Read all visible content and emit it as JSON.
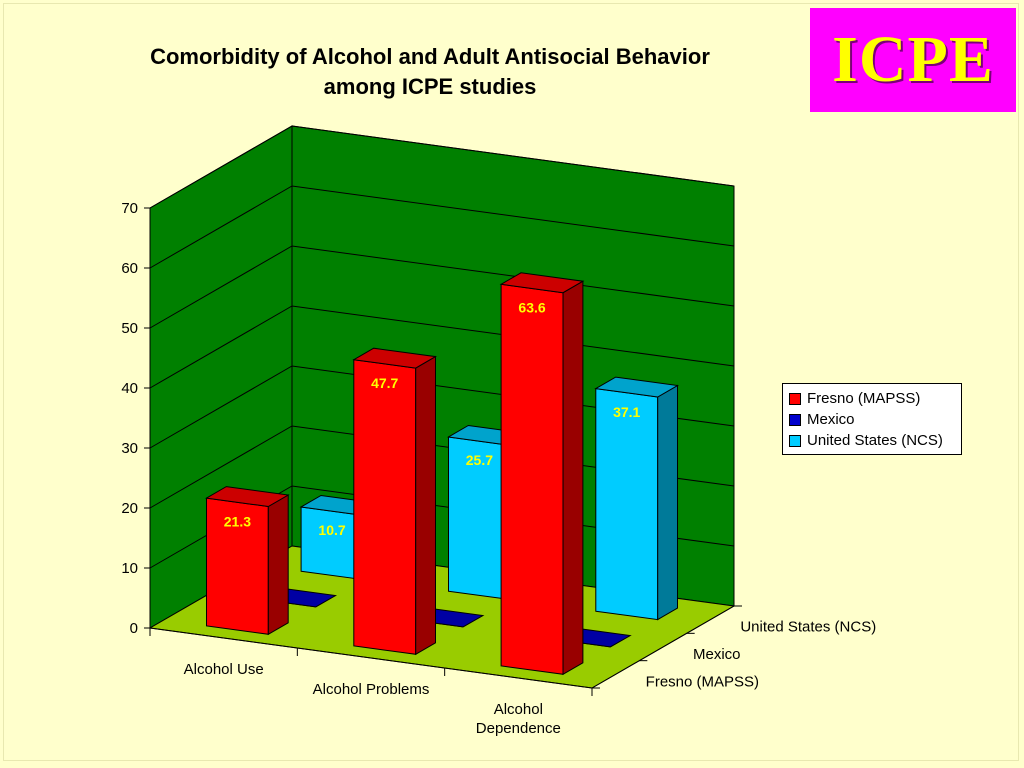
{
  "logo": {
    "text": "ICPE",
    "bg": "#ff00ff",
    "color": "#ffff00"
  },
  "chart_data": {
    "type": "bar",
    "style": "3d-column",
    "title_lines": [
      "Comorbidity of Alcohol and Adult Antisocial Behavior",
      "among ICPE studies"
    ],
    "categories": [
      "Alcohol Use",
      "Alcohol Problems",
      "Alcohol Dependence"
    ],
    "category_label_lines": [
      [
        "Alcohol Use"
      ],
      [
        "Alcohol Problems"
      ],
      [
        "Alcohol",
        "Dependence"
      ]
    ],
    "series": [
      {
        "name": "Fresno (MAPSS)",
        "color": "#ff0000",
        "values": [
          21.3,
          47.7,
          63.6
        ],
        "labels": [
          "21.3",
          "47.7",
          "63.6"
        ]
      },
      {
        "name": "Mexico",
        "color": "#0000cc",
        "values": [
          0,
          0,
          0
        ],
        "labels": [
          "",
          "",
          ""
        ]
      },
      {
        "name": "United States (NCS)",
        "color": "#00ccff",
        "values": [
          10.7,
          25.7,
          37.1
        ],
        "labels": [
          "10.7",
          "25.7",
          "37.1"
        ]
      }
    ],
    "ylim": [
      0,
      70
    ],
    "yticks": [
      0,
      10,
      20,
      30,
      40,
      50,
      60,
      70
    ],
    "grid": true,
    "legend_position": "right",
    "wall_color": "#008000",
    "floor_color": "#99cc00"
  }
}
